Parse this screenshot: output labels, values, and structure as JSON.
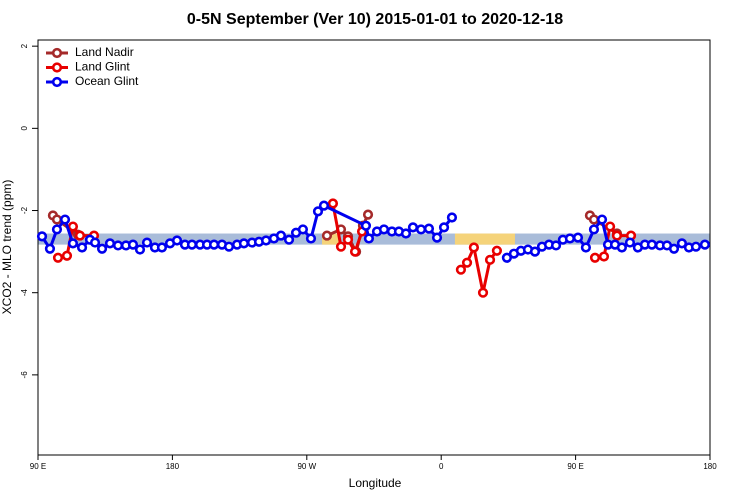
{
  "chart_data": {
    "type": "line",
    "title": "0-5N September (Ver 10)   2015-01-01 to 2020-12-18",
    "xlabel": "Longitude",
    "ylabel": "XCO2 - MLO trend (ppm)",
    "xlim": [
      90,
      540
    ],
    "ylim": [
      -7.95,
      2.15
    ],
    "xticks": [
      {
        "value": 90,
        "label": "90 E"
      },
      180,
      {
        "value": 270,
        "label": "90 W"
      },
      {
        "value": 360,
        "label": "0"
      },
      {
        "value": 450,
        "label": "90 E"
      },
      {
        "value": 540,
        "label": "180"
      }
    ],
    "yticks": [
      -6,
      -4,
      -2,
      0,
      2
    ],
    "legend": "top-left",
    "bands": [
      {
        "x": [
          90,
          540
        ],
        "y": [
          -2.83,
          -2.56
        ],
        "color": "#a9bcd9"
      },
      {
        "x": [
          280.2,
          292.2
        ],
        "y": [
          -2.83,
          -2.56
        ],
        "color": "#f5d37a"
      },
      {
        "x": [
          369.2,
          409.4
        ],
        "y": [
          -2.83,
          -2.56
        ],
        "color": "#f5d37a"
      }
    ],
    "series": [
      {
        "name": "Land Nadir",
        "color": "#a52a2a",
        "x": [
          100.0,
          102.7,
          116.8,
          null,
          283.5,
          292.9,
          297.6,
          303.0,
          307.6,
          311.0,
          null,
          459.6,
          462.3,
          477.7
        ],
        "values": [
          -2.12,
          -2.22,
          -2.59,
          null,
          -2.61,
          -2.46,
          -2.63,
          -3.0,
          -2.37,
          -2.1,
          null,
          -2.12,
          -2.22,
          -2.56
        ]
      },
      {
        "name": "Land Glint",
        "color": "#e80000",
        "x": [
          103.4,
          109.4,
          113.4,
          118.1,
          127.5,
          null,
          287.5,
          292.9,
          297.6,
          302.3,
          307.0,
          null,
          373.2,
          377.3,
          381.9,
          388.0,
          392.7,
          397.3,
          null,
          463.0,
          469.0,
          473.1,
          477.7,
          487.1
        ],
        "values": [
          -3.15,
          -3.1,
          -2.39,
          -2.61,
          -2.61,
          null,
          -1.83,
          -2.88,
          -2.71,
          -3.0,
          -2.51,
          null,
          -3.44,
          -3.27,
          -2.9,
          -4.0,
          -3.2,
          -2.98,
          null,
          -3.15,
          -3.12,
          -2.39,
          -2.61,
          -2.61
        ]
      },
      {
        "name": "Ocean Glint",
        "color": "#0000ee",
        "x": [
          92.7,
          98.0,
          102.7,
          108.1,
          113.4,
          119.5,
          124.8,
          128.2,
          132.9,
          138.2,
          143.6,
          148.9,
          153.6,
          158.3,
          163.0,
          168.3,
          173.0,
          178.4,
          183.1,
          188.4,
          193.1,
          198.5,
          203.2,
          207.9,
          213.2,
          217.9,
          223.3,
          227.9,
          233.3,
          238.0,
          242.7,
          248.0,
          252.7,
          258.1,
          262.8,
          267.4,
          272.8,
          277.5,
          281.5,
          309.6,
          311.6,
          317.0,
          321.7,
          327.0,
          331.7,
          336.4,
          341.1,
          346.5,
          351.8,
          357.2,
          361.9,
          367.2,
          null,
          404.0,
          408.7,
          413.4,
          418.1,
          422.8,
          427.5,
          432.2,
          436.9,
          441.5,
          446.2,
          451.6,
          456.9,
          462.3,
          467.7,
          471.7,
          476.4,
          481.0,
          486.4,
          491.7,
          496.4,
          501.1,
          506.5,
          511.2,
          515.9,
          521.2,
          525.9,
          530.6,
          536.6
        ],
        "values": [
          -2.63,
          -2.93,
          -2.46,
          -2.22,
          -2.8,
          -2.9,
          -2.71,
          -2.78,
          -2.93,
          -2.8,
          -2.85,
          -2.85,
          -2.83,
          -2.95,
          -2.78,
          -2.9,
          -2.9,
          -2.8,
          -2.73,
          -2.83,
          -2.83,
          -2.83,
          -2.83,
          -2.83,
          -2.83,
          -2.88,
          -2.83,
          -2.8,
          -2.78,
          -2.76,
          -2.73,
          -2.68,
          -2.61,
          -2.71,
          -2.54,
          -2.46,
          -2.68,
          -2.02,
          -1.88,
          -2.37,
          -2.68,
          -2.51,
          -2.46,
          -2.51,
          -2.51,
          -2.56,
          -2.41,
          -2.46,
          -2.44,
          -2.66,
          -2.41,
          -2.17,
          null,
          -3.15,
          -3.05,
          -2.98,
          -2.95,
          -3.0,
          -2.88,
          -2.83,
          -2.85,
          -2.71,
          -2.68,
          -2.66,
          -2.9,
          -2.46,
          -2.22,
          -2.83,
          -2.83,
          -2.9,
          -2.78,
          -2.9,
          -2.83,
          -2.83,
          -2.85,
          -2.85,
          -2.93,
          -2.8,
          -2.9,
          -2.88,
          -2.83
        ]
      }
    ]
  }
}
